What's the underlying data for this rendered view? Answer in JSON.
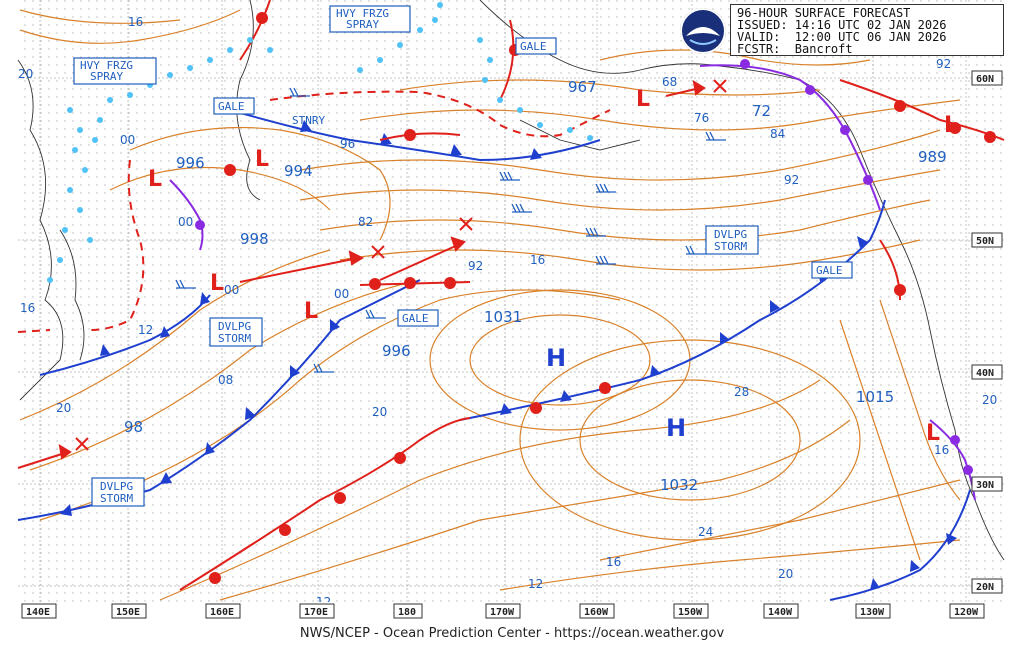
{
  "header": {
    "line1": "96-HOUR SURFACE FORECAST",
    "issued": "ISSUED: 14:16 UTC 02 JAN 2026",
    "valid": "VALID:  12:00 UTC 06 JAN 2026",
    "forecaster": "FCSTR:  Bancroft"
  },
  "footer": "NWS/NCEP - Ocean Prediction Center - https://ocean.weather.gov",
  "logo": "noaa-logo",
  "lon_labels": [
    "140E",
    "150E",
    "160E",
    "170E",
    "180",
    "170W",
    "160W",
    "150W",
    "140W",
    "130W",
    "120W"
  ],
  "lat_labels": [
    "60N",
    "50N",
    "40N",
    "30N",
    "20N"
  ],
  "highs": [
    {
      "symbol": "H",
      "pressure": "1031"
    },
    {
      "symbol": "H",
      "pressure": "1032"
    }
  ],
  "lows": [
    {
      "symbol": "L",
      "pressure": "996"
    },
    {
      "symbol": "L",
      "pressure": "994"
    },
    {
      "symbol": "L",
      "pressure": "998"
    },
    {
      "symbol": "L",
      "pressure": "996"
    },
    {
      "symbol": "L",
      "pressure": "98"
    },
    {
      "symbol": "L",
      "pressure": "967"
    },
    {
      "symbol": "L",
      "pressure": "989"
    },
    {
      "symbol": "L",
      "pressure": "1015"
    }
  ],
  "warnings": {
    "hvy_frzg_spray_1": [
      "HVY FRZG",
      "SPRAY"
    ],
    "hvy_frzg_spray_2": [
      "HVY FRZG",
      "SPRAY"
    ],
    "gale_1": "GALE",
    "gale_2": "GALE",
    "gale_3": "GALE",
    "gale_4": "GALE",
    "dvlpg_storm_1": [
      "DVLPG",
      "STORM"
    ],
    "dvlpg_storm_2": [
      "DVLPG",
      "STORM"
    ],
    "dvlpg_storm_3": [
      "DVLPG",
      "STORM"
    ]
  },
  "stnry_label": "STNRY",
  "isobar_labels": [
    "16",
    "20",
    "00",
    "00",
    "96",
    "82",
    "92",
    "00",
    "12",
    "08",
    "20",
    "16",
    "20",
    "28",
    "24",
    "16",
    "12",
    "20",
    "12",
    "68",
    "76",
    "84",
    "92",
    "72",
    "16",
    "20",
    "92",
    "00",
    "16"
  ],
  "colors": {
    "isobar": "#d9822b",
    "cold_front": "#1f3fcf",
    "warm_front": "#e0201a",
    "occluded": "#8a2be2",
    "ice": "#4fc3f7",
    "text": "#1f5fbf"
  }
}
